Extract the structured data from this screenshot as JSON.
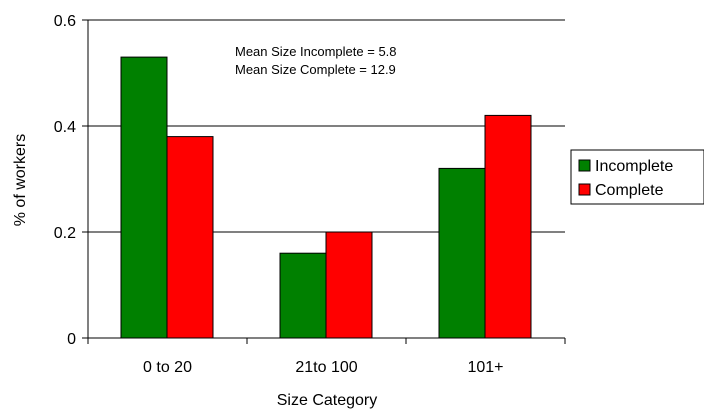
{
  "chart_data": {
    "type": "bar",
    "categories": [
      "0 to 20",
      "21to 100",
      "101+"
    ],
    "series": [
      {
        "name": "Incomplete",
        "values": [
          0.53,
          0.16,
          0.32
        ],
        "color": "#008000"
      },
      {
        "name": "Complete",
        "values": [
          0.38,
          0.2,
          0.42
        ],
        "color": "#ff0000"
      }
    ],
    "xlabel": "Size Category",
    "ylabel": "% of workers",
    "ylim": [
      0,
      0.6
    ],
    "yticks": [
      0,
      0.2,
      0.4,
      0.6
    ],
    "ytick_labels": [
      "0",
      "0.2",
      "0.4",
      "0.6"
    ],
    "grid": true,
    "legend_position": "right",
    "annotations": [
      "Mean Size Incomplete = 5.8",
      "Mean Size Complete = 12.9"
    ]
  }
}
